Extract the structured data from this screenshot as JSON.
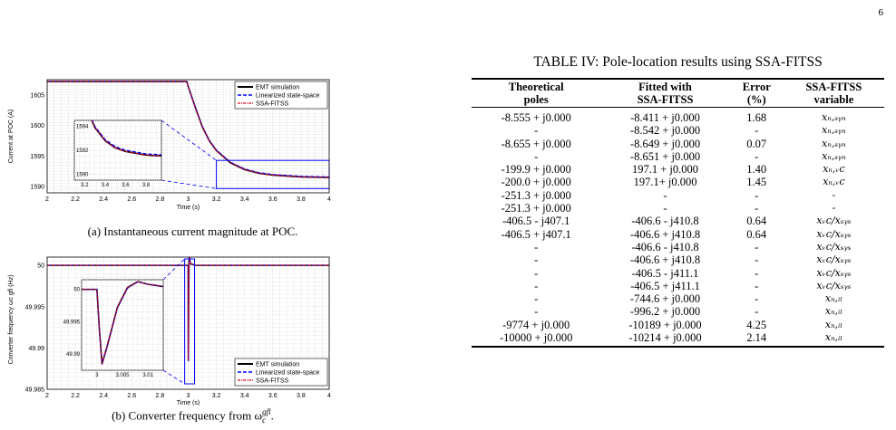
{
  "page_number": "6",
  "figure_a": {
    "caption": "(a) Instantaneous current magnitude at POC.",
    "ylabel": "Current at POC (A)",
    "xlabel": "Time (s)",
    "xticks": [
      "2",
      "2.2",
      "2.4",
      "2.6",
      "2.8",
      "3",
      "3.2",
      "3.4",
      "3.6",
      "3.8",
      "4"
    ],
    "yticks": [
      "1590",
      "1595",
      "1600",
      "1605"
    ],
    "inset_xticks": [
      "3.2",
      "3.4",
      "3.6",
      "3.8"
    ],
    "inset_yticks": [
      "1590",
      "1592",
      "1594"
    ],
    "legend": [
      "EMT simulation",
      "Linearized state-space",
      "SSA-FITSS"
    ]
  },
  "figure_b": {
    "caption": "(b) Converter frequency from ω",
    "caption_sub": "c",
    "caption_sup": "gfl",
    "caption_end": ".",
    "ylabel": "Converter frequency ωc gfl (Hz)",
    "xlabel": "Time (s)",
    "xticks": [
      "2",
      "2.2",
      "2.4",
      "2.6",
      "2.8",
      "3",
      "3.2",
      "3.4",
      "3.6",
      "3.8",
      "4"
    ],
    "yticks": [
      "49.985",
      "49.99",
      "49.995",
      "50"
    ],
    "inset_xticks": [
      "3",
      "3.005",
      "3.01"
    ],
    "inset_yticks": [
      "49.99",
      "49.995",
      "50"
    ],
    "legend": [
      "EMT simulation",
      "Linearized state-space",
      "SSA-FITSS"
    ]
  },
  "table": {
    "caption": "TABLE IV: Pole-location results using SSA-FITSS",
    "headers": [
      [
        "Theoretical",
        "poles"
      ],
      [
        "Fitted with",
        "SSA-FITSS"
      ],
      [
        "Error",
        "(%)"
      ],
      [
        "SSA-FITSS",
        "variable"
      ]
    ],
    "rows": [
      [
        "-8.555 + j0.000",
        "-8.411 + j0.000",
        "1.68",
        "xₙ,ₛᵧₙ"
      ],
      [
        "-",
        "-8.542 + j0.000",
        "-",
        "xₙ,ₛᵧₙ"
      ],
      [
        "-8.655 + j0.000",
        "-8.649 + j0.000",
        "0.07",
        "xₙ,ₛᵧₙ"
      ],
      [
        "-",
        "-8.651 + j0.000",
        "-",
        "xₙ,ₛᵧₙ"
      ],
      [
        "-199.9 + j0.000",
        "197.1 + j0.000",
        "1.40",
        "xₙ,ᵥc"
      ],
      [
        "-200.0 + j0.000",
        "197.1+ j0.000",
        "1.45",
        "xₙ,ᵥc"
      ],
      [
        "-251.3 + j0.000",
        "-",
        "-",
        "-"
      ],
      [
        "-251.3 + j0.000",
        "-",
        "-",
        "-"
      ],
      [
        "-406.5 - j407.1",
        "-406.6 - j410.8",
        "0.64",
        "xᵥc/xₛᵧₛ"
      ],
      [
        "-406.5 + j407.1",
        "-406.6 + j410.8",
        "0.64",
        "xᵥc/xₛᵧₛ"
      ],
      [
        "-",
        "-406.6 - j410.8",
        "-",
        "xᵥc/xₛᵧₛ"
      ],
      [
        "-",
        "-406.6 + j410.8",
        "-",
        "xᵥc/xₛᵧₛ"
      ],
      [
        "-",
        "-406.5 - j411.1",
        "-",
        "xᵥc/xₛᵧₛ"
      ],
      [
        "-",
        "-406.5 + j411.1",
        "-",
        "xᵥc/xₛᵧₛ"
      ],
      [
        "-",
        "-744.6 + j0.000",
        "-",
        "xₙ,ᵢₗ"
      ],
      [
        "-",
        "-996.2 + j0.000",
        "-",
        "xₙ,ᵢₗ"
      ],
      [
        "-9774 + j0.000",
        "-10189 + j0.000",
        "4.25",
        "xₙ,ᵢₗ"
      ],
      [
        "-10000 + j0.000",
        "-10214 + j0.000",
        "2.14",
        "xₙ,ᵢₗ"
      ]
    ]
  },
  "chart_data": [
    {
      "type": "line",
      "xlabel": "Time (s)",
      "ylabel": "Current at POC (A)",
      "xlim": [
        2,
        4
      ],
      "ylim": [
        1589,
        1607.5
      ],
      "grid": true,
      "legend_position": "top-right",
      "series": [
        {
          "name": "EMT simulation",
          "x": [
            2,
            2.5,
            2.99,
            3.0,
            3.05,
            3.1,
            3.15,
            3.2,
            3.3,
            3.4,
            3.5,
            3.6,
            3.8,
            4.0
          ],
          "y": [
            1607.2,
            1607.2,
            1607.2,
            1606.4,
            1603.0,
            1599.8,
            1597.5,
            1595.9,
            1593.9,
            1592.8,
            1592.2,
            1591.9,
            1591.6,
            1591.5
          ]
        },
        {
          "name": "Linearized state-space",
          "x": [
            2,
            2.5,
            2.99,
            3.0,
            3.05,
            3.1,
            3.15,
            3.2,
            3.3,
            3.4,
            3.5,
            3.6,
            3.8,
            4.0
          ],
          "y": [
            1607.2,
            1607.2,
            1607.2,
            1606.4,
            1603.1,
            1599.9,
            1597.6,
            1596.0,
            1594.0,
            1592.9,
            1592.3,
            1592.0,
            1591.7,
            1591.6
          ]
        },
        {
          "name": "SSA-FITSS",
          "x": [
            2,
            2.5,
            2.99,
            3.0,
            3.05,
            3.1,
            3.15,
            3.2,
            3.3,
            3.4,
            3.5,
            3.6,
            3.8,
            4.0
          ],
          "y": [
            1607.2,
            1607.2,
            1607.2,
            1606.4,
            1603.0,
            1599.8,
            1597.5,
            1595.9,
            1593.9,
            1592.8,
            1592.2,
            1591.9,
            1591.6,
            1591.5
          ]
        }
      ],
      "inset": {
        "xlim": [
          3.1,
          3.95
        ],
        "ylim": [
          1589.5,
          1594.5
        ]
      }
    },
    {
      "type": "line",
      "xlabel": "Time (s)",
      "ylabel": "Converter frequency ωc gfl (Hz)",
      "xlim": [
        2,
        4
      ],
      "ylim": [
        49.985,
        50.001
      ],
      "grid": true,
      "legend_position": "bottom-right",
      "series": [
        {
          "name": "EMT simulation",
          "x": [
            2,
            2.99,
            3.0,
            3.0005,
            3.001,
            3.002,
            3.004,
            3.006,
            3.008,
            3.01,
            3.015,
            3.05,
            4.0
          ],
          "y": [
            50.0,
            50.0,
            50.0,
            49.9936,
            49.9885,
            49.9912,
            49.9972,
            50.0003,
            50.0012,
            50.0008,
            50.0002,
            50.0,
            50.0
          ]
        },
        {
          "name": "Linearized state-space",
          "x": [
            2,
            2.99,
            3.0,
            3.0005,
            3.001,
            3.002,
            3.004,
            3.006,
            3.008,
            3.01,
            3.015,
            3.05,
            4.0
          ],
          "y": [
            50.0,
            50.0,
            50.0,
            49.9935,
            49.9884,
            49.9911,
            49.9971,
            50.0002,
            50.0012,
            50.0008,
            50.0002,
            50.0,
            50.0
          ]
        },
        {
          "name": "SSA-FITSS",
          "x": [
            2,
            2.99,
            3.0,
            3.0005,
            3.001,
            3.002,
            3.004,
            3.006,
            3.008,
            3.01,
            3.015,
            3.05,
            4.0
          ],
          "y": [
            50.0,
            50.0,
            50.0,
            49.9936,
            49.9885,
            49.9912,
            49.9972,
            50.0003,
            50.0012,
            50.0008,
            50.0002,
            50.0,
            50.0
          ]
        }
      ],
      "inset": {
        "xlim": [
          2.997,
          3.013
        ],
        "ylim": [
          49.9875,
          50.0015
        ]
      }
    }
  ]
}
